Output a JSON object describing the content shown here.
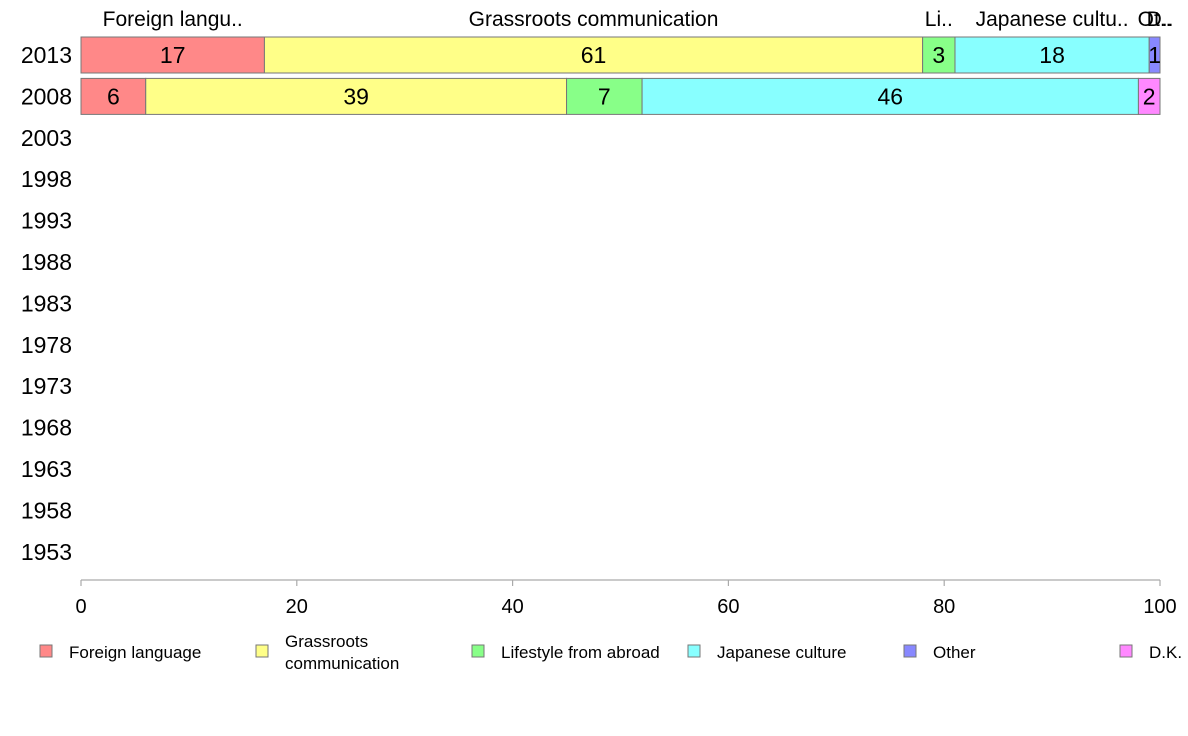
{
  "chart_data": {
    "type": "bar",
    "orientation": "horizontal",
    "stacked": true,
    "categories": [
      "2013",
      "2008",
      "2003",
      "1998",
      "1993",
      "1988",
      "1983",
      "1978",
      "1973",
      "1968",
      "1963",
      "1958",
      "1953"
    ],
    "series": [
      {
        "name": "Foreign language",
        "color": "#ff8888",
        "top_label": "Foreign langu..",
        "values": [
          17,
          6,
          null,
          null,
          null,
          null,
          null,
          null,
          null,
          null,
          null,
          null,
          null
        ]
      },
      {
        "name": "Grassroots communication",
        "legend_lines": [
          "Grassroots",
          "communication"
        ],
        "color": "#ffff88",
        "top_label": "Grassroots communication",
        "values": [
          61,
          39,
          null,
          null,
          null,
          null,
          null,
          null,
          null,
          null,
          null,
          null,
          null
        ]
      },
      {
        "name": "Lifestyle from abroad",
        "color": "#88ff88",
        "top_label": "Li..",
        "values": [
          3,
          7,
          null,
          null,
          null,
          null,
          null,
          null,
          null,
          null,
          null,
          null,
          null
        ]
      },
      {
        "name": "Japanese culture",
        "color": "#88ffff",
        "top_label": "Japanese cultu..",
        "values": [
          18,
          46,
          null,
          null,
          null,
          null,
          null,
          null,
          null,
          null,
          null,
          null,
          null
        ]
      },
      {
        "name": "Other",
        "color": "#8888ff",
        "top_label": "Ot..",
        "values": [
          1,
          0,
          null,
          null,
          null,
          null,
          null,
          null,
          null,
          null,
          null,
          null,
          null
        ]
      },
      {
        "name": "D.K.",
        "color": "#ff88ff",
        "top_label": "D..",
        "values": [
          0,
          2,
          null,
          null,
          null,
          null,
          null,
          null,
          null,
          null,
          null,
          null,
          null
        ]
      }
    ],
    "xlim": [
      0,
      100
    ],
    "xticks": [
      "0",
      "20",
      "40",
      "60",
      "80",
      "100"
    ],
    "grid": false,
    "legend_position": "bottom"
  }
}
